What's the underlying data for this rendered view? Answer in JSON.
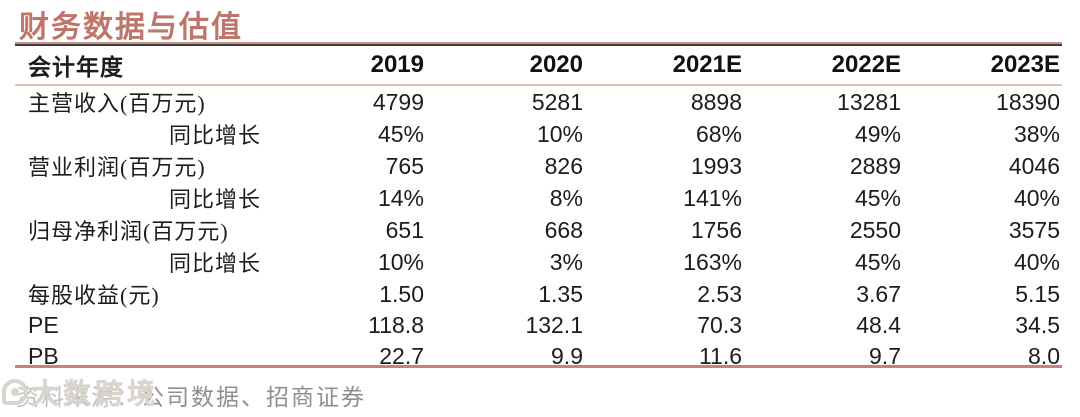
{
  "title": "财务数据与估值",
  "colors": {
    "title_color": "#C0756A",
    "rule_light": "#CC9583",
    "rule_dark": "#413C3B",
    "header_line": "#E2C3B4",
    "rule_bottom": "#C4846F",
    "text_color": "#1C1C1C",
    "footer_color": "#8F8F8F",
    "watermark_color": "#D9D4CD"
  },
  "table": {
    "header": [
      "会计年度",
      "2019",
      "2020",
      "2021E",
      "2022E",
      "2023E"
    ],
    "rows": [
      {
        "label": "主营收入(百万元)",
        "indent": false,
        "values": [
          "4799",
          "5281",
          "8898",
          "13281",
          "18390"
        ]
      },
      {
        "label": "同比增长",
        "indent": true,
        "values": [
          "45%",
          "10%",
          "68%",
          "49%",
          "38%"
        ]
      },
      {
        "label": "营业利润(百万元)",
        "indent": false,
        "values": [
          "765",
          "826",
          "1993",
          "2889",
          "4046"
        ]
      },
      {
        "label": "同比增长",
        "indent": true,
        "values": [
          "14%",
          "8%",
          "141%",
          "45%",
          "40%"
        ]
      },
      {
        "label": "归母净利润(百万元)",
        "indent": false,
        "values": [
          "651",
          "668",
          "1756",
          "2550",
          "3575"
        ]
      },
      {
        "label": "同比增长",
        "indent": true,
        "values": [
          "10%",
          "3%",
          "163%",
          "45%",
          "40%"
        ]
      },
      {
        "label": "每股收益(元)",
        "indent": false,
        "values": [
          "1.50",
          "1.35",
          "2.53",
          "3.67",
          "5.15"
        ]
      },
      {
        "label": "PE",
        "indent": false,
        "values": [
          "118.8",
          "132.1",
          "70.3",
          "48.4",
          "34.5"
        ]
      },
      {
        "label": "PB",
        "indent": false,
        "values": [
          "22.7",
          "9.9",
          "11.6",
          "9.7",
          "8.0"
        ]
      }
    ]
  },
  "footer": {
    "source_prefix": "资料来源：",
    "source": "公司数据、招商证券",
    "watermark": "大数跨境"
  }
}
